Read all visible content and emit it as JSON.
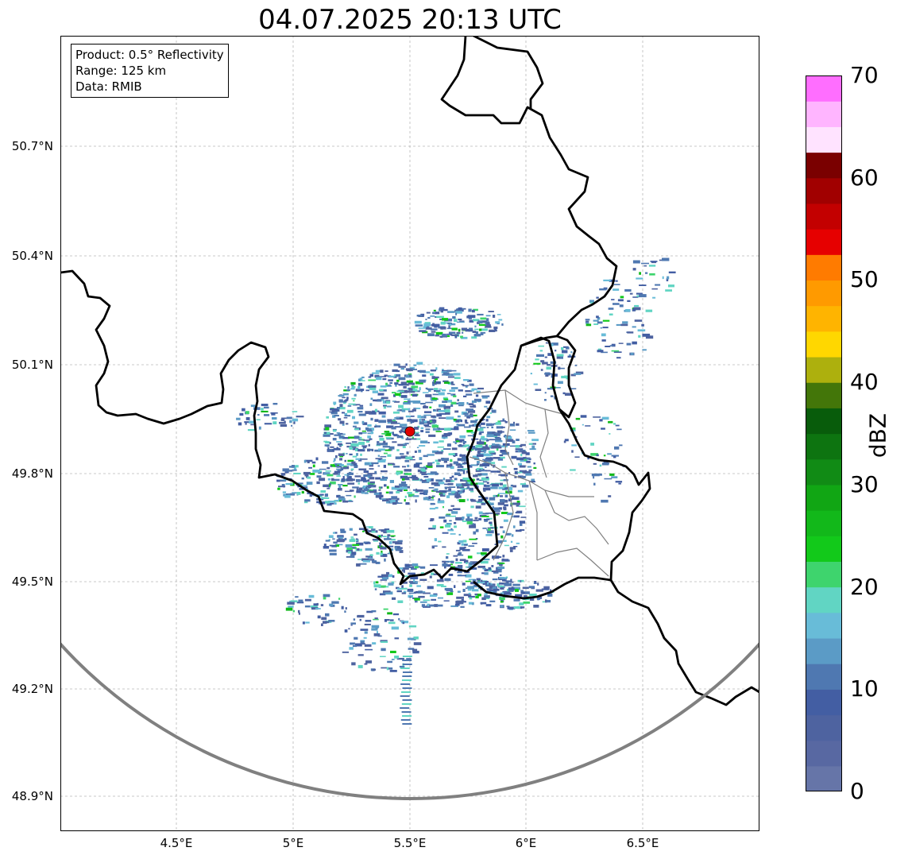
{
  "map": {
    "title": "04.07.2025 20:13 UTC",
    "info_box": {
      "product": "Product: 0.5° Reflectivity",
      "range": "Range: 125 km",
      "source": "Data: RMIB"
    },
    "lon_ticks": [
      "4.5°E",
      "5°E",
      "5.5°E",
      "6°E",
      "6.5°E"
    ],
    "lat_ticks": [
      "50.7°N",
      "50.4°N",
      "50.1°N",
      "49.8°N",
      "49.5°N",
      "49.2°N",
      "48.9°N"
    ],
    "radar_site": {
      "lon": 5.5,
      "lat": 49.92,
      "marker_color": "#e00000"
    },
    "range_ring_color": "#808080",
    "grid": true,
    "colorbar": {
      "label": "dBZ",
      "ticks": [
        "0",
        "10",
        "20",
        "30",
        "40",
        "50",
        "60",
        "70"
      ],
      "min": 0,
      "max": 70,
      "step": 2.5,
      "colors": [
        "#6675a8",
        "#5868a2",
        "#4e63a0",
        "#435ea3",
        "#4f78b1",
        "#5b9bc6",
        "#68bcd8",
        "#61d5c3",
        "#3ed46d",
        "#12c91a",
        "#12b81a",
        "#11a614",
        "#118b15",
        "#0d7410",
        "#085c0b",
        "#437609",
        "#adb00d",
        "#ffd700",
        "#ffb400",
        "#ff9a00",
        "#ff7b00",
        "#e60000",
        "#c30000",
        "#a10000",
        "#7a0000",
        "#ffe3ff",
        "#ffb5ff",
        "#ff6eff",
        "#e937ec"
      ]
    }
  }
}
